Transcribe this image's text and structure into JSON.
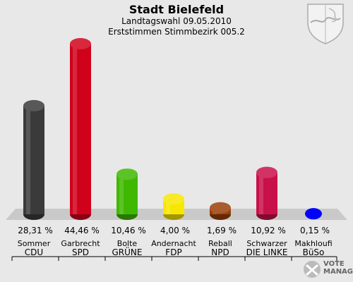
{
  "header": {
    "title": "Stadt Bielefeld",
    "subtitle": "Landtagswahl 09.05.2010",
    "subtitle2": "Erststimmen Stimmbezirk 005.2"
  },
  "chart_data": {
    "type": "bar",
    "categories": [
      "CDU",
      "SPD",
      "GRÜNE",
      "FDP",
      "NPD",
      "DIE LINKE",
      "BüSo"
    ],
    "candidates": [
      "Sommer",
      "Garbrecht",
      "Bolte",
      "Andernacht",
      "Reball",
      "Schwarzer",
      "Makhloufi"
    ],
    "values": [
      28.31,
      44.46,
      10.46,
      4.0,
      1.69,
      10.92,
      0.15
    ],
    "value_labels": [
      "28,31 %",
      "44,46 %",
      "10,46 %",
      "4,00 %",
      "1,69 %",
      "10,92 %",
      "0,15 %"
    ],
    "colors": [
      "#3a3a3a",
      "#d0021b",
      "#3fb800",
      "#f7e600",
      "#9a3e08",
      "#c8104a",
      "#0000ff"
    ],
    "ylim": [
      0,
      44.46
    ]
  },
  "logo": {
    "line1": "VOTE",
    "line2": "MANAGER"
  }
}
